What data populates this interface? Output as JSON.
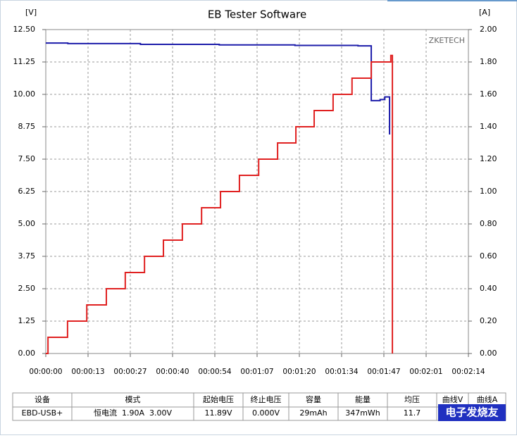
{
  "chart_data": {
    "type": "line",
    "step": true,
    "title": "EB Tester Software",
    "y_label": "[V]",
    "y2_label": "[A]",
    "watermark": "ZKETECH",
    "grid": true,
    "xlim": [
      0,
      134
    ],
    "xticks": [
      {
        "value": 0,
        "label": "00:00:00"
      },
      {
        "value": 13.4,
        "label": "00:00:13"
      },
      {
        "value": 26.8,
        "label": "00:00:27"
      },
      {
        "value": 40.2,
        "label": "00:00:40"
      },
      {
        "value": 53.6,
        "label": "00:00:54"
      },
      {
        "value": 67,
        "label": "00:01:07"
      },
      {
        "value": 80.4,
        "label": "00:01:20"
      },
      {
        "value": 93.8,
        "label": "00:01:34"
      },
      {
        "value": 107.2,
        "label": "00:01:47"
      },
      {
        "value": 120.6,
        "label": "00:02:01"
      },
      {
        "value": 134,
        "label": "00:02:14"
      }
    ],
    "ylim": [
      0,
      12.5
    ],
    "yticks": [
      {
        "value": 0,
        "label": "0.00"
      },
      {
        "value": 1.25,
        "label": "1.25"
      },
      {
        "value": 2.5,
        "label": "2.50"
      },
      {
        "value": 3.75,
        "label": "3.75"
      },
      {
        "value": 5,
        "label": "5.00"
      },
      {
        "value": 6.25,
        "label": "6.25"
      },
      {
        "value": 7.5,
        "label": "7.50"
      },
      {
        "value": 8.75,
        "label": "8.75"
      },
      {
        "value": 10,
        "label": "10.00"
      },
      {
        "value": 11.25,
        "label": "11.25"
      },
      {
        "value": 12.5,
        "label": "12.50"
      }
    ],
    "y2lim": [
      0,
      2
    ],
    "y2ticks": [
      {
        "value": 0,
        "label": "0.00"
      },
      {
        "value": 0.2,
        "label": "0.20"
      },
      {
        "value": 0.4,
        "label": "0.40"
      },
      {
        "value": 0.6,
        "label": "0.60"
      },
      {
        "value": 0.8,
        "label": "0.80"
      },
      {
        "value": 1,
        "label": "1.00"
      },
      {
        "value": 1.2,
        "label": "1.20"
      },
      {
        "value": 1.4,
        "label": "1.40"
      },
      {
        "value": 1.6,
        "label": "1.60"
      },
      {
        "value": 1.8,
        "label": "1.80"
      },
      {
        "value": 2,
        "label": "2.00"
      }
    ],
    "series": [
      {
        "color": "#1c1caa",
        "x": [
          0,
          7,
          30,
          55,
          79,
          99,
          103.2,
          106,
          107.5,
          109.0
        ],
        "values": [
          11.98,
          11.96,
          11.93,
          11.91,
          11.89,
          11.87,
          9.76,
          9.8,
          9.9,
          8.45
        ]
      },
      {
        "color": "#e02020",
        "axis": "y2",
        "x": [
          0,
          0.7,
          6.9,
          13.0,
          19.2,
          25.2,
          31.3,
          37.3,
          43.3,
          49.4,
          55.4,
          61.4,
          67.5,
          73.5,
          79.3,
          85.1,
          91.1,
          97.1,
          103.2,
          109.4,
          109.9
        ],
        "values": [
          0,
          0.1,
          0.2,
          0.3,
          0.4,
          0.5,
          0.6,
          0.7,
          0.8,
          0.9,
          1.0,
          1.1,
          1.2,
          1.3,
          1.4,
          1.5,
          1.6,
          1.7,
          1.8,
          1.84,
          0
        ]
      }
    ]
  },
  "table": {
    "headers": [
      "设备",
      "模式",
      "起始电压",
      "终止电压",
      "容量",
      "能量",
      "均压",
      "曲线V",
      "曲线A"
    ],
    "rows": [
      [
        "EBD-USB+",
        "恒电流  1.90A  3.00V",
        "11.89V",
        "0.000V",
        "29mAh",
        "347mWh",
        "11.7"
      ]
    ]
  },
  "logo": "电子发烧友"
}
